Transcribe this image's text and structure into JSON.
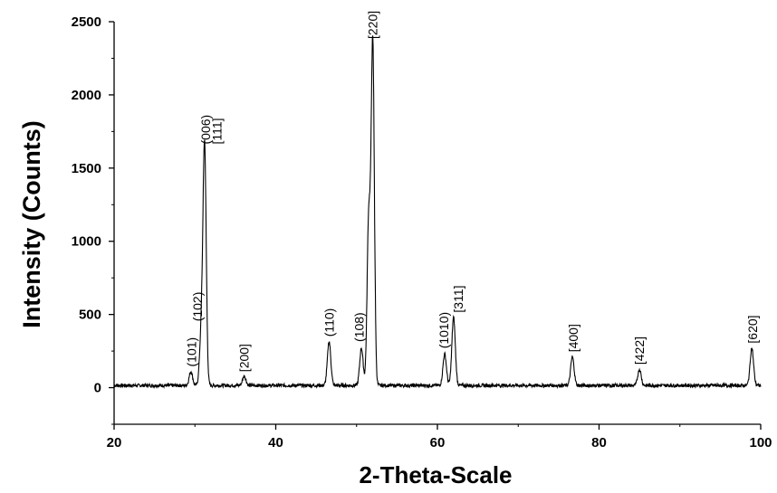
{
  "chart_data": {
    "type": "line",
    "title": "",
    "xlabel": "2-Theta-Scale",
    "ylabel": "Intensity (Counts)",
    "xlim": [
      20,
      100
    ],
    "ylim": [
      -250,
      2500
    ],
    "x_ticks": [
      20,
      40,
      60,
      80,
      100
    ],
    "x_tick_labels": [
      "20",
      "40",
      "60",
      "80",
      "100"
    ],
    "y_ticks": [
      0,
      500,
      1000,
      1500,
      2000,
      2500
    ],
    "y_tick_labels": [
      "0",
      "500",
      "1000",
      "1500",
      "2000",
      "2500"
    ],
    "grid": false,
    "legend": "none",
    "line_color": "#000000",
    "baseline": 15,
    "noise_amplitude": 12,
    "peaks": [
      {
        "x": 29.5,
        "y": 110,
        "label": "(101)"
      },
      {
        "x": 30.8,
        "y": 380,
        "label": "(102)"
      },
      {
        "x": 31.2,
        "y": 1630,
        "label": "(006) [111]"
      },
      {
        "x": 36.1,
        "y": 80,
        "label": "[200]"
      },
      {
        "x": 46.6,
        "y": 315,
        "label": "(110)"
      },
      {
        "x": 50.6,
        "y": 270,
        "label": "(108)"
      },
      {
        "x": 51.5,
        "y": 1150,
        "label": ""
      },
      {
        "x": 52.0,
        "y": 2350,
        "label": "[220]"
      },
      {
        "x": 60.9,
        "y": 230,
        "label": "(1010)"
      },
      {
        "x": 62.0,
        "y": 480,
        "label": "[311]"
      },
      {
        "x": 76.7,
        "y": 210,
        "label": "[400]"
      },
      {
        "x": 85.0,
        "y": 125,
        "label": "[422]"
      },
      {
        "x": 98.9,
        "y": 270,
        "label": "[620]"
      }
    ],
    "annotations": [
      {
        "text": "(101)",
        "x": 29.6,
        "y": 130
      },
      {
        "text": "(102)",
        "x": 30.3,
        "y": 440
      },
      {
        "text": "(006)",
        "x": 31.3,
        "y": 1650
      },
      {
        "text": "[111]",
        "x": 32.7,
        "y": 1650
      },
      {
        "text": "[200]",
        "x": 36.1,
        "y": 95
      },
      {
        "text": "(110)",
        "x": 46.6,
        "y": 335
      },
      {
        "text": "(108)",
        "x": 50.3,
        "y": 300
      },
      {
        "text": "[220]",
        "x": 52.0,
        "y": 2370
      },
      {
        "text": "(1010)",
        "x": 60.8,
        "y": 255
      },
      {
        "text": "[311]",
        "x": 62.6,
        "y": 500
      },
      {
        "text": "[400]",
        "x": 76.8,
        "y": 230
      },
      {
        "text": "[422]",
        "x": 85.0,
        "y": 145
      },
      {
        "text": "[620]",
        "x": 99.0,
        "y": 290
      }
    ]
  }
}
